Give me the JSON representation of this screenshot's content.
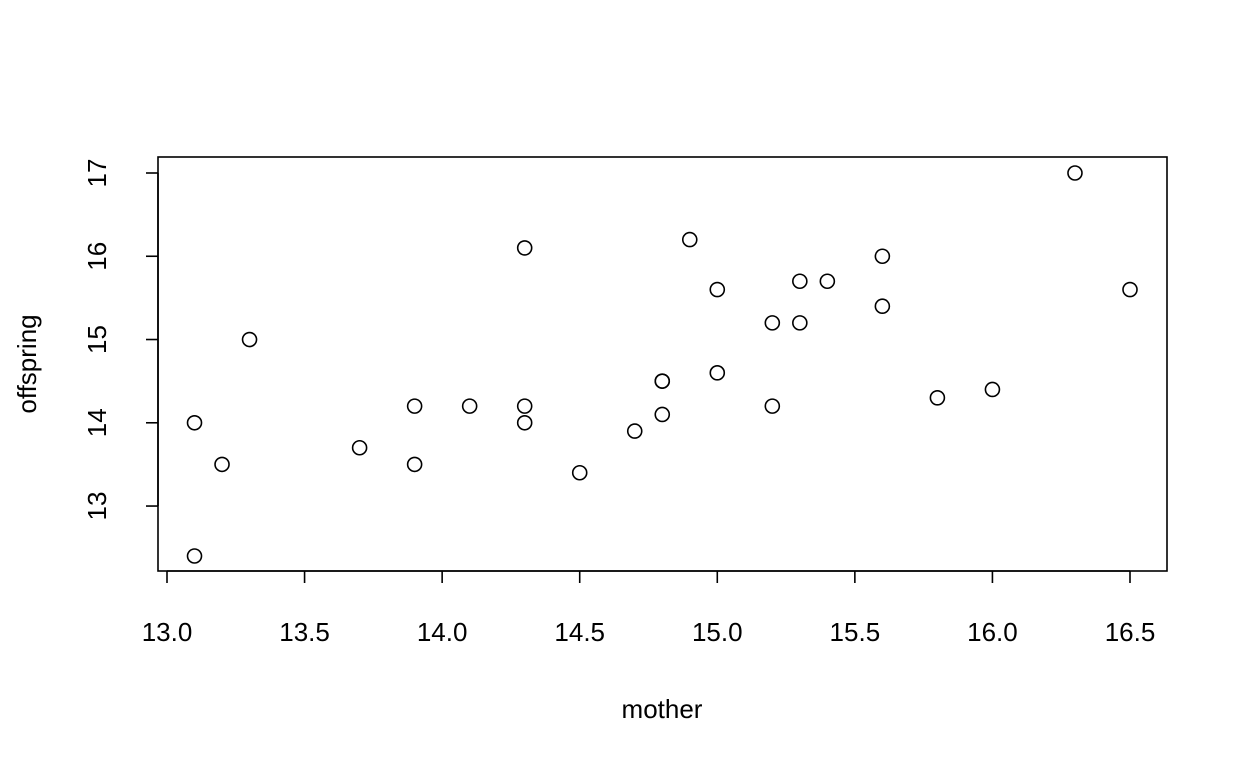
{
  "chart_data": {
    "type": "scatter",
    "xlabel": "mother",
    "ylabel": "offspring",
    "xlim": [
      13.0,
      16.5
    ],
    "ylim": [
      12.4,
      17.0
    ],
    "x_ticks": [
      13.0,
      13.5,
      14.0,
      14.5,
      15.0,
      15.5,
      16.0,
      16.5
    ],
    "x_tick_labels": [
      "13.0",
      "13.5",
      "14.0",
      "14.5",
      "15.0",
      "15.5",
      "16.0",
      "16.5"
    ],
    "y_ticks": [
      13,
      14,
      15,
      16,
      17
    ],
    "y_tick_labels": [
      "13",
      "14",
      "15",
      "16",
      "17"
    ],
    "grid": false,
    "legend": "none",
    "points": [
      {
        "x": 13.1,
        "y": 14.0
      },
      {
        "x": 13.1,
        "y": 12.4
      },
      {
        "x": 13.2,
        "y": 13.5
      },
      {
        "x": 13.3,
        "y": 15.0
      },
      {
        "x": 13.7,
        "y": 13.7
      },
      {
        "x": 13.9,
        "y": 14.2
      },
      {
        "x": 13.9,
        "y": 13.5
      },
      {
        "x": 14.1,
        "y": 14.2
      },
      {
        "x": 14.3,
        "y": 16.1
      },
      {
        "x": 14.3,
        "y": 14.2
      },
      {
        "x": 14.3,
        "y": 14.0
      },
      {
        "x": 14.5,
        "y": 13.4
      },
      {
        "x": 14.7,
        "y": 13.9
      },
      {
        "x": 14.8,
        "y": 14.5
      },
      {
        "x": 14.8,
        "y": 14.5
      },
      {
        "x": 14.8,
        "y": 14.1
      },
      {
        "x": 14.9,
        "y": 16.2
      },
      {
        "x": 15.0,
        "y": 15.6
      },
      {
        "x": 15.0,
        "y": 14.6
      },
      {
        "x": 15.2,
        "y": 15.2
      },
      {
        "x": 15.2,
        "y": 14.2
      },
      {
        "x": 15.3,
        "y": 15.7
      },
      {
        "x": 15.3,
        "y": 15.2
      },
      {
        "x": 15.4,
        "y": 15.7
      },
      {
        "x": 15.6,
        "y": 16.0
      },
      {
        "x": 15.6,
        "y": 15.4
      },
      {
        "x": 15.8,
        "y": 14.3
      },
      {
        "x": 16.0,
        "y": 14.4
      },
      {
        "x": 16.3,
        "y": 17.0
      },
      {
        "x": 16.5,
        "y": 15.6
      }
    ]
  }
}
